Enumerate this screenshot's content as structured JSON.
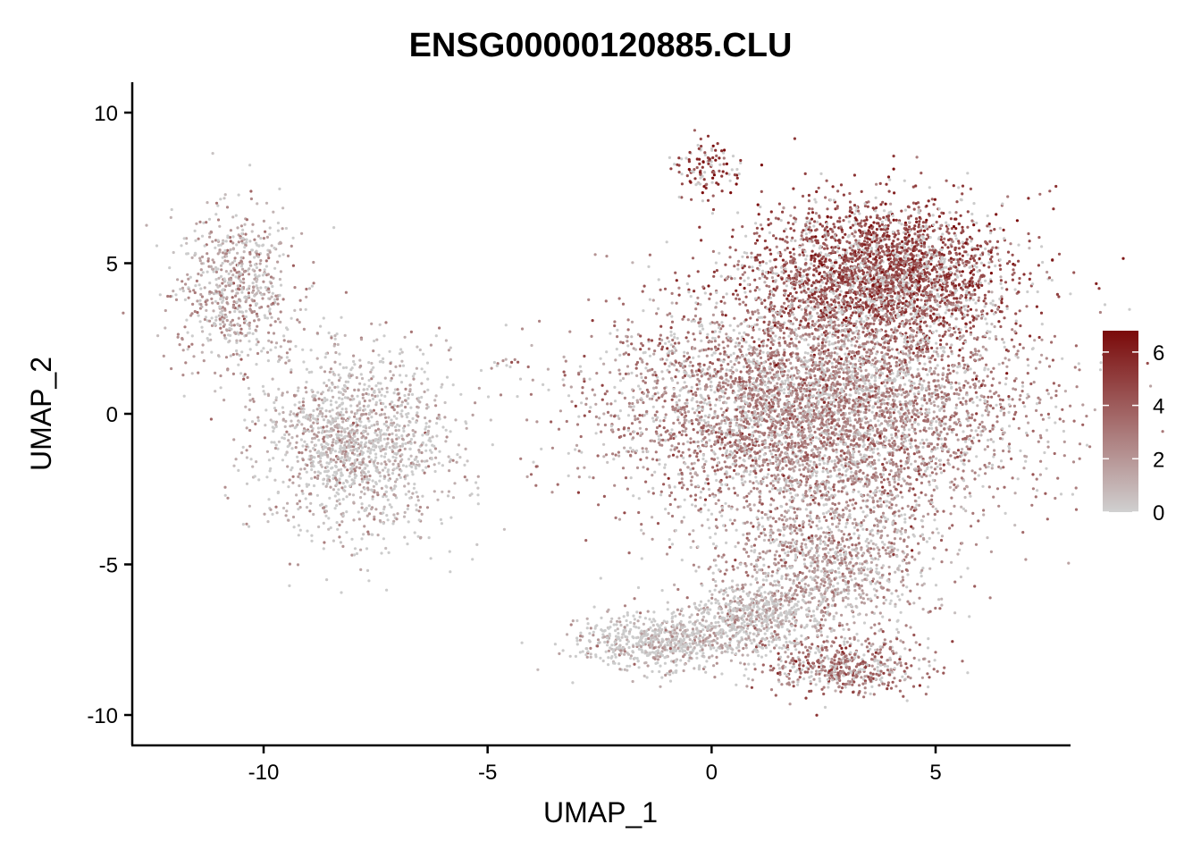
{
  "chart_data": {
    "type": "scatter",
    "title": "ENSG00000120885.CLU",
    "xlabel": "UMAP_1",
    "ylabel": "UMAP_2",
    "xlim": [
      -13,
      8
    ],
    "ylim": [
      -11,
      11
    ],
    "x_ticks": [
      -10,
      -5,
      0,
      5
    ],
    "y_ticks": [
      -10,
      -5,
      0,
      5,
      10
    ],
    "x_tick_labels": [
      "-10",
      "-5",
      "0",
      "5"
    ],
    "y_tick_labels": [
      "-10",
      "-5",
      "0",
      "5",
      "10"
    ],
    "grid": false,
    "legend": {
      "position": "right",
      "type": "colorbar",
      "range": [
        0,
        6.8
      ],
      "ticks": [
        0,
        2,
        4,
        6
      ],
      "tick_labels": [
        "0",
        "2",
        "4",
        "6"
      ]
    },
    "colors": {
      "low": "#cccccc",
      "high": "#7a0a0a"
    },
    "clusters": [
      {
        "name": "left-upper",
        "cx": -10.6,
        "cy": 4.2,
        "sx": 0.7,
        "sy": 1.4,
        "n": 700,
        "mean_expr": 1.6
      },
      {
        "name": "left-lower",
        "cx": -8.0,
        "cy": -1.0,
        "sx": 1.1,
        "sy": 1.5,
        "n": 1500,
        "mean_expr": 0.9
      },
      {
        "name": "small-islet",
        "cx": -4.6,
        "cy": 1.65,
        "sx": 0.25,
        "sy": 0.08,
        "n": 10,
        "mean_expr": 3.0
      },
      {
        "name": "right-top-arm",
        "cx": -0.1,
        "cy": 8.1,
        "sx": 0.4,
        "sy": 0.45,
        "n": 120,
        "mean_expr": 5.4
      },
      {
        "name": "right-top",
        "cx": 3.8,
        "cy": 4.6,
        "sx": 1.4,
        "sy": 1.2,
        "n": 3000,
        "mean_expr": 4.6
      },
      {
        "name": "right-center",
        "cx": 2.3,
        "cy": 0.2,
        "sx": 2.3,
        "sy": 1.9,
        "n": 5500,
        "mean_expr": 2.6
      },
      {
        "name": "right-lower",
        "cx": 2.6,
        "cy": -5.0,
        "sx": 1.2,
        "sy": 1.4,
        "n": 1200,
        "mean_expr": 1.8
      },
      {
        "name": "right-bottom",
        "cx": 3.0,
        "cy": -8.4,
        "sx": 0.9,
        "sy": 0.5,
        "n": 500,
        "mean_expr": 3.2
      },
      {
        "name": "left-tail",
        "cx": -1.0,
        "cy": -7.6,
        "sx": 1.0,
        "sy": 0.5,
        "n": 700,
        "mean_expr": 0.6
      },
      {
        "name": "mid-tail",
        "cx": 1.0,
        "cy": -6.7,
        "sx": 0.7,
        "sy": 0.5,
        "n": 500,
        "mean_expr": 0.8
      }
    ]
  }
}
